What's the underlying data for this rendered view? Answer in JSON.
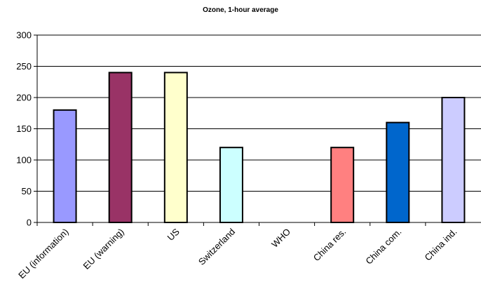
{
  "chart_data": {
    "type": "bar",
    "title": "Ozone, 1-hour average",
    "xlabel": "",
    "ylabel": "",
    "ylim": [
      0,
      300
    ],
    "yticks": [
      0,
      50,
      100,
      150,
      200,
      250,
      300
    ],
    "grid": true,
    "categories": [
      "EU (information)",
      "EU (warning)",
      "US",
      "Switzerland",
      "WHO",
      "China res.",
      "China com.",
      "China ind."
    ],
    "values": [
      180,
      240,
      240,
      120,
      null,
      120,
      160,
      200
    ],
    "colors": [
      "#9999ff",
      "#993366",
      "#ffffcc",
      "#ccffff",
      "#ffffff",
      "#ff8080",
      "#0066cc",
      "#ccccff"
    ]
  }
}
